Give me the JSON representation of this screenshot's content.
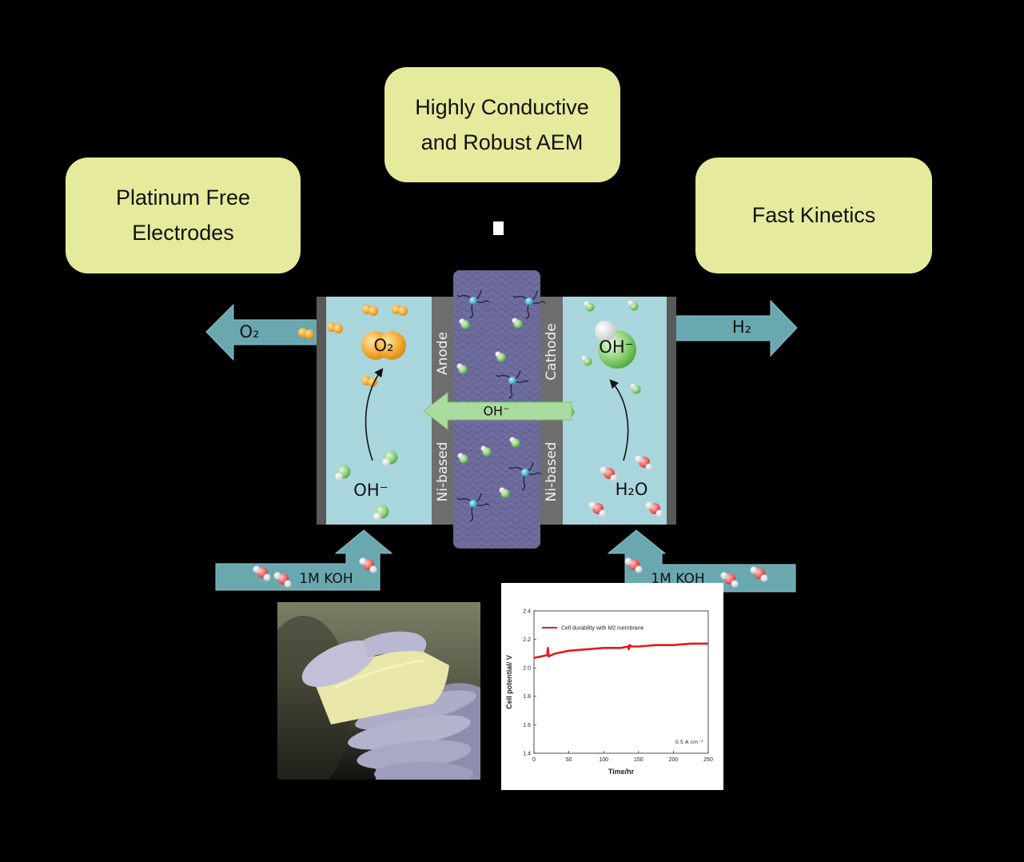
{
  "feature_boxes": {
    "electrodes": {
      "line1": "Platinum Free",
      "line2": "Electrodes"
    },
    "membrane": {
      "line1": "Highly Conductive",
      "line2": "and Robust AEM"
    },
    "kinetics": {
      "line1": "Fast Kinetics"
    }
  },
  "cell": {
    "anode": {
      "name": "Anode",
      "material": "Ni-based"
    },
    "cathode": {
      "name": "Cathode",
      "material": "Ni-based"
    },
    "anode_product": "O₂",
    "anode_reactant": "OH⁻",
    "cathode_product": "OH⁻",
    "cathode_reactant": "H₂O",
    "membrane_ion": "OH⁻"
  },
  "flows": {
    "anode_outlet": "O₂",
    "cathode_outlet": "H₂",
    "anode_inlet": "1M KOH",
    "cathode_inlet": "1M KOH"
  },
  "colors": {
    "feature_box": "#e6ea9c",
    "flow_arrow": "#6aa8b0",
    "electrolyte": "#a9d6dd",
    "electrode_plate": "#595959",
    "electrode_strip": "#6e6e6e",
    "membrane": "#6e6d9e",
    "ion_arrow": "#aadb9f",
    "durability_line": "#e31a1c"
  },
  "chart_data": {
    "type": "line",
    "x": [
      0,
      10,
      19,
      20,
      21,
      25,
      30,
      40,
      50,
      75,
      100,
      125,
      135,
      136,
      137,
      140,
      150,
      175,
      200,
      225,
      250
    ],
    "series": [
      {
        "name": "Cell durability with M2 membrane",
        "values": [
          2.07,
          2.08,
          2.09,
          2.14,
          2.08,
          2.09,
          2.1,
          2.11,
          2.12,
          2.13,
          2.14,
          2.14,
          2.15,
          2.13,
          2.16,
          2.15,
          2.15,
          2.16,
          2.16,
          2.17,
          2.17
        ]
      }
    ],
    "xlabel": "Time/hr",
    "ylabel": "Cell potential/ V",
    "xlim": [
      0,
      250
    ],
    "ylim": [
      1.4,
      2.4
    ],
    "xticks": [
      0,
      50,
      100,
      150,
      200,
      250
    ],
    "xtick_labels": [
      "0",
      "50",
      "100",
      "150",
      "200",
      "250"
    ],
    "yticks": [
      1.4,
      1.6,
      1.8,
      2.0,
      2.2,
      2.4
    ],
    "ytick_labels": [
      "1.4",
      "1.6",
      "1.8",
      "2.0",
      "2.2",
      "2.4"
    ],
    "annotation": "0.5 A cm⁻²",
    "legend": "top-left",
    "grid": false
  }
}
